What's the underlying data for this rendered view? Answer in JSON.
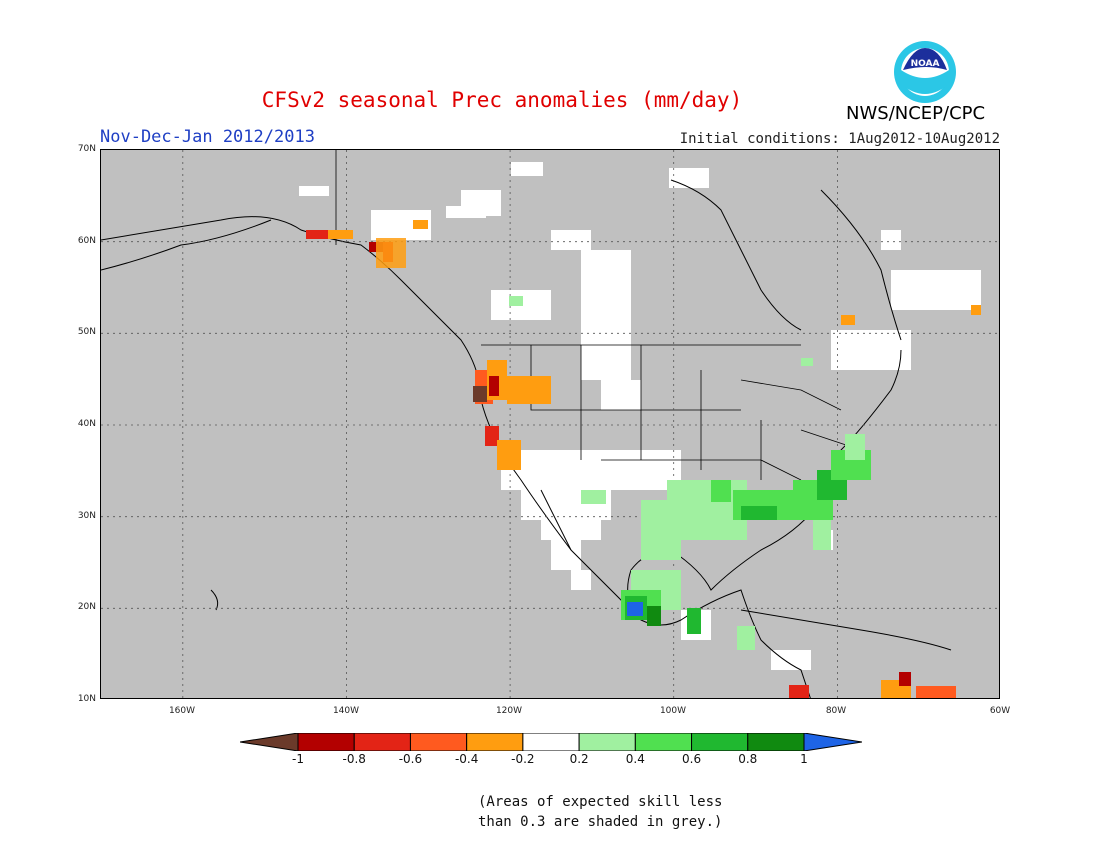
{
  "title": "CFSv2 seasonal Prec anomalies (mm/day)",
  "period": "Nov-Dec-Jan 2012/2013",
  "initial_conditions": "Initial conditions: 1Aug2012-10Aug2012",
  "agency": "NWS/NCEP/CPC",
  "logo_text": "NOAA",
  "lat_ticks": [
    "70N",
    "60N",
    "50N",
    "40N",
    "30N",
    "20N",
    "10N"
  ],
  "lon_ticks": [
    "160W",
    "140W",
    "120W",
    "100W",
    "80W",
    "60W"
  ],
  "colorbar": {
    "labels": [
      "-1",
      "-0.8",
      "-0.6",
      "-0.4",
      "-0.2",
      "0.2",
      "0.4",
      "0.6",
      "0.8",
      "1"
    ],
    "colors": [
      "#6b3a2a",
      "#b30000",
      "#e32416",
      "#ff5a1f",
      "#ff9d10",
      "#ffffff",
      "#a0f0a0",
      "#50e050",
      "#20b830",
      "#108a10",
      "#1e64e6"
    ]
  },
  "note_line1": "(Areas of expected skill less",
  "note_line2": "than 0.3 are shaded in grey.)",
  "colors": {
    "missing": "#c0c0c0",
    "title": "#e00000",
    "period": "#1f3fc4"
  }
}
